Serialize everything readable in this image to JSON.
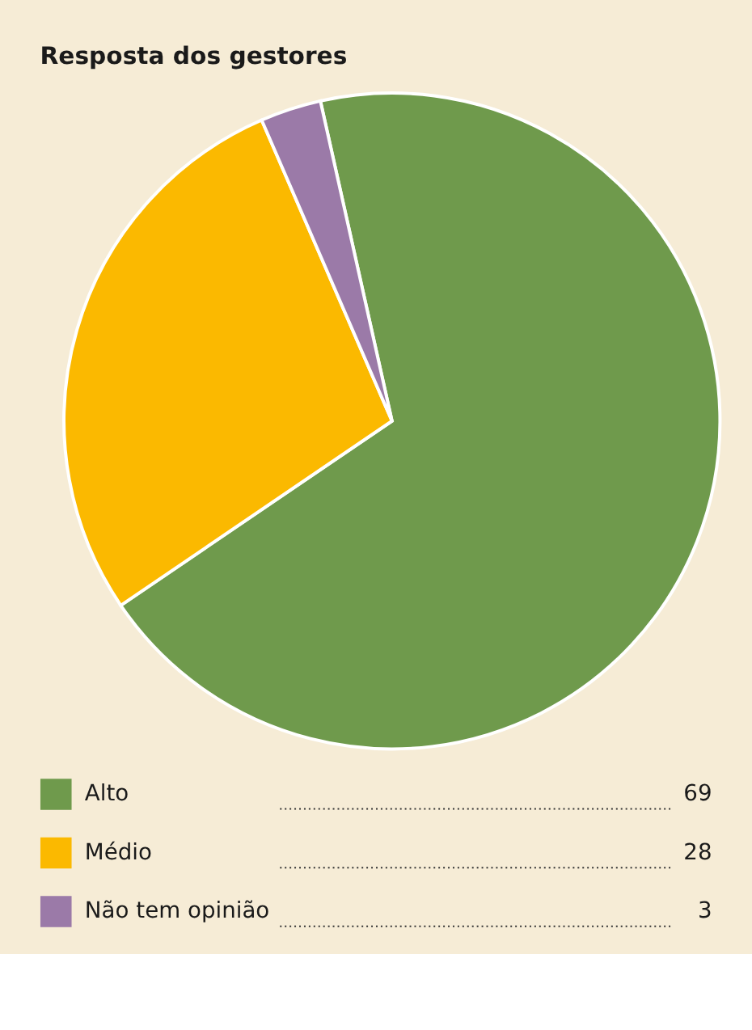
{
  "chart_data": {
    "type": "pie",
    "title": "Resposta dos gestores",
    "categories": [
      "Alto",
      "Médio",
      "Não tem opinião"
    ],
    "values": [
      69,
      28,
      3
    ],
    "colors": [
      "#6f9a4c",
      "#fbb900",
      "#9b7aa8"
    ],
    "data_labels": true,
    "legend": "bottom"
  }
}
